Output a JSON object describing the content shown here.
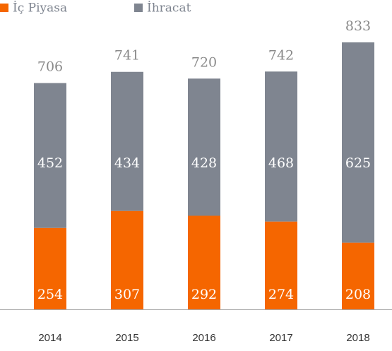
{
  "chart_data": {
    "type": "stacked_bar",
    "categories": [
      "2014",
      "2015",
      "2016",
      "2017",
      "2018"
    ],
    "series": [
      {
        "name": "İç Piyasa",
        "color": "#f56600",
        "values": [
          254,
          307,
          292,
          274,
          208
        ]
      },
      {
        "name": "İhracat",
        "color": "#7f8590",
        "values": [
          452,
          434,
          428,
          468,
          625
        ]
      }
    ],
    "totals": [
      706,
      741,
      720,
      742,
      833
    ],
    "legend": "top-left"
  }
}
